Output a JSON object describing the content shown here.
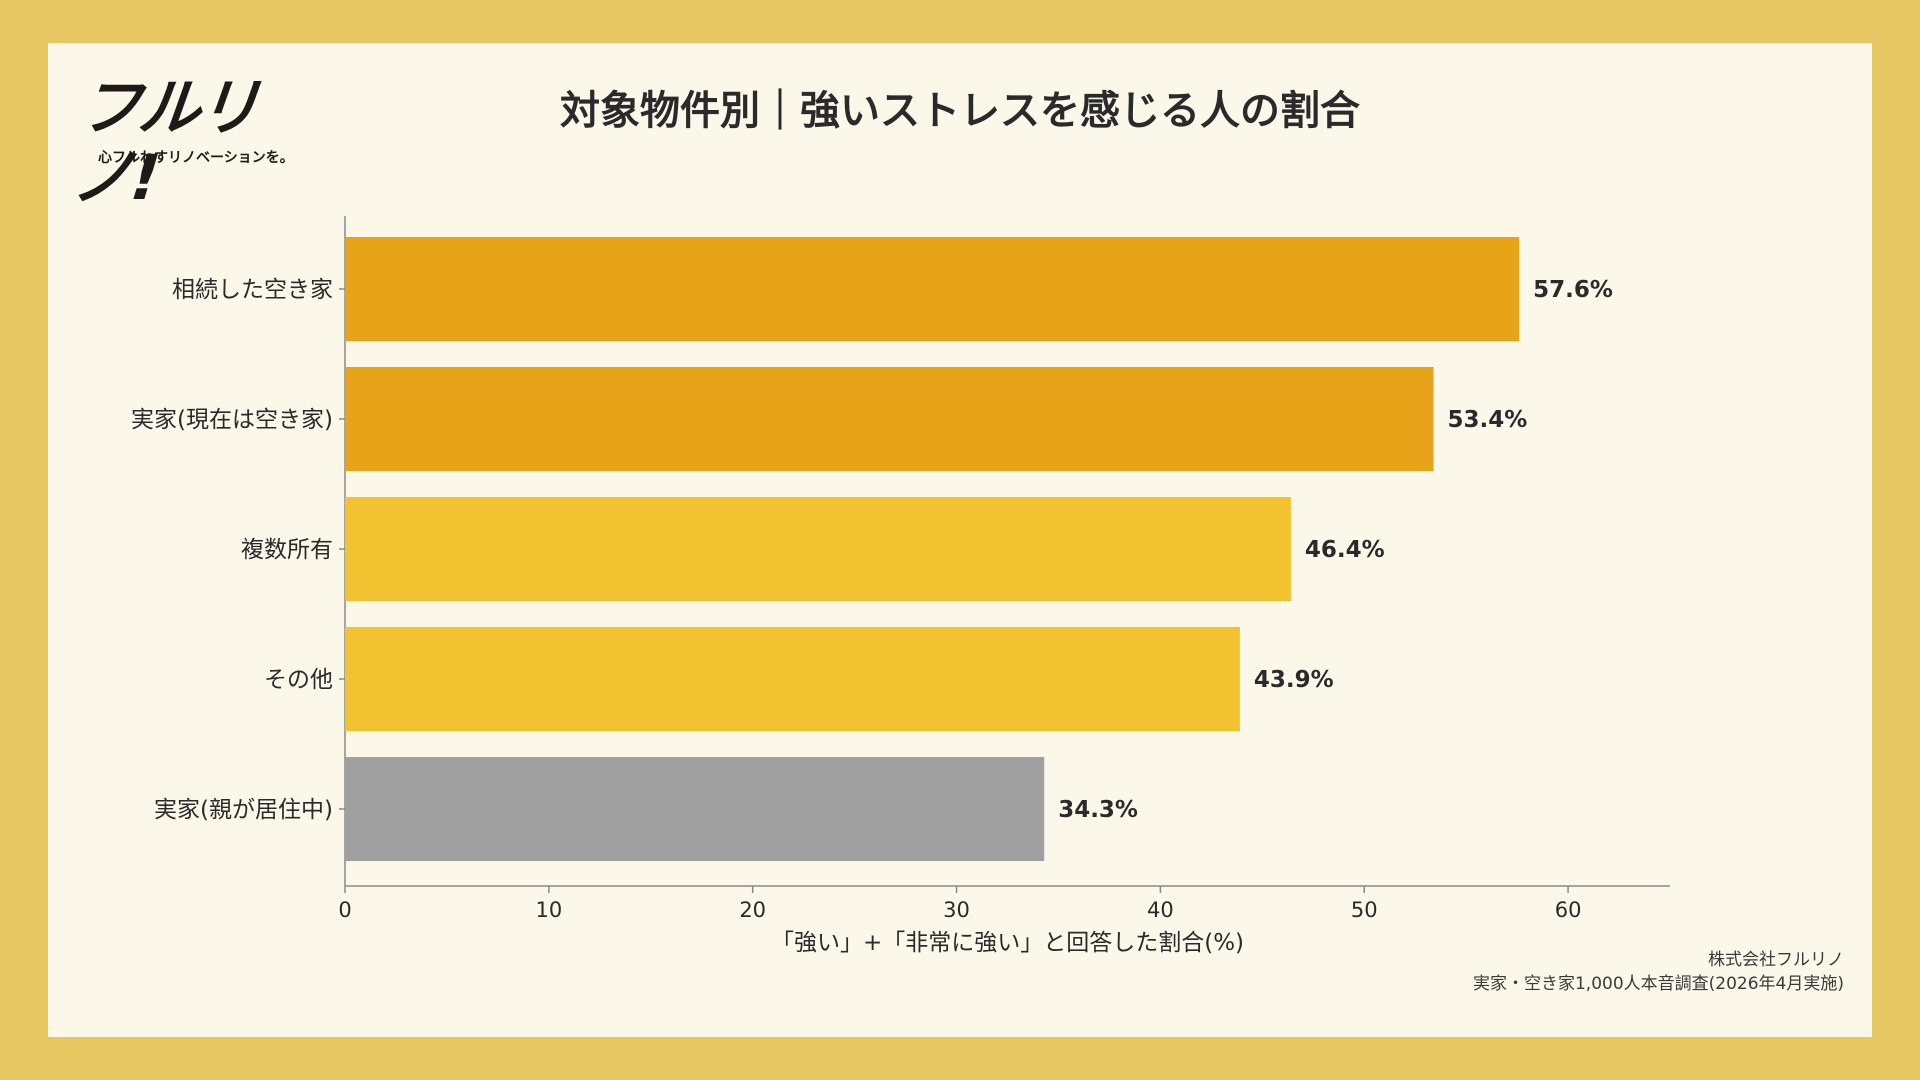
{
  "brand": {
    "logo_text": "フルリノ!",
    "tagline": "心フルわすリノベーションを。"
  },
  "chart_data": {
    "type": "bar",
    "orientation": "horizontal",
    "title": "対象物件別｜強いストレスを感じる人の割合",
    "xlabel": "「強い」+「非常に強い」と回答した割合(%)",
    "ylabel": "",
    "xlim": [
      0,
      65
    ],
    "xticks": [
      0,
      10,
      20,
      30,
      40,
      50,
      60
    ],
    "categories": [
      "相続した空き家",
      "実家(現在は空き家)",
      "複数所有",
      "その他",
      "実家(親が居住中)"
    ],
    "values": [
      57.6,
      53.4,
      46.4,
      43.9,
      34.3
    ],
    "value_labels": [
      "57.6%",
      "53.4%",
      "46.4%",
      "43.9%",
      "34.3%"
    ],
    "bar_colors": [
      "#E8A418",
      "#E8A418",
      "#F2C330",
      "#F2C330",
      "#A0A0A0"
    ],
    "grid": false,
    "legend": "none"
  },
  "source": {
    "company": "株式会社フルリノ",
    "survey": "実家・空き家1,000人本音調査(2026年4月実施)"
  },
  "colors": {
    "frame": "#E8C862",
    "card": "#FBF8EA",
    "axis": "#888888",
    "text": "#2a2a2a"
  }
}
